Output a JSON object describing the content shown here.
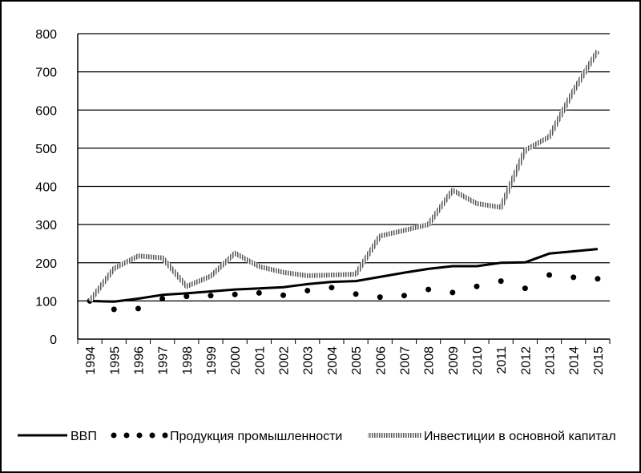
{
  "chart_data": {
    "type": "line",
    "title": "",
    "xlabel": "",
    "ylabel": "",
    "ylim": [
      0,
      800
    ],
    "yticks": [
      0,
      100,
      200,
      300,
      400,
      500,
      600,
      700,
      800
    ],
    "grid": "horizontal",
    "legend_position": "bottom",
    "categories": [
      "1994",
      "1995",
      "1996",
      "1997",
      "1998",
      "1999",
      "2000",
      "2001",
      "2002",
      "2003",
      "2004",
      "2005",
      "2006",
      "2007",
      "2008",
      "2009",
      "2010",
      "2011",
      "2012",
      "2013",
      "2014",
      "2015"
    ],
    "series": [
      {
        "name": "ВВП",
        "style": "solid",
        "color": "#000000",
        "values": [
          100,
          98,
          106,
          116,
          120,
          125,
          130,
          133,
          136,
          144,
          150,
          152,
          163,
          174,
          184,
          191,
          191,
          200,
          201,
          224,
          230,
          236
        ]
      },
      {
        "name": "Продукция промышленности",
        "style": "dotted",
        "color": "#000000",
        "values": [
          100,
          78,
          80,
          106,
          112,
          114,
          117,
          121,
          115,
          127,
          135,
          118,
          110,
          114,
          130,
          122,
          138,
          152,
          133,
          168,
          162,
          158
        ]
      },
      {
        "name": "Инвестиции в основной капитал",
        "style": "hatched",
        "color": "#444444",
        "values": [
          100,
          185,
          218,
          213,
          138,
          165,
          225,
          190,
          175,
          166,
          168,
          170,
          270,
          285,
          300,
          390,
          355,
          345,
          495,
          530,
          650,
          755
        ]
      }
    ]
  }
}
